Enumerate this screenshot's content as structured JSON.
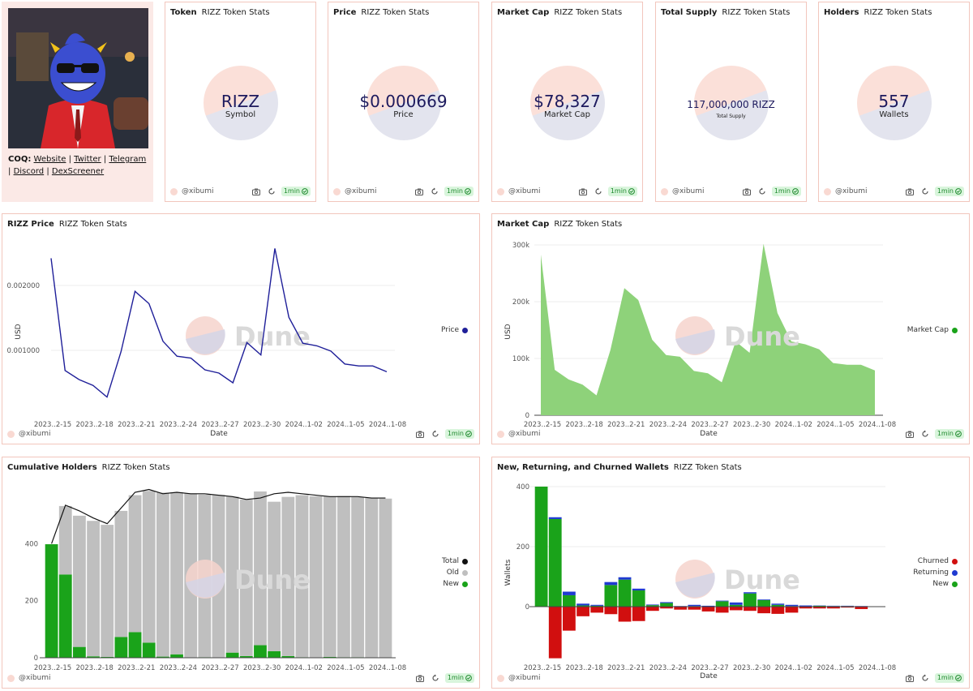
{
  "profile": {
    "prefix": "COQ:",
    "links": [
      "Website",
      "Twitter",
      "Telegram",
      "Discord",
      "DexScreener"
    ],
    "separator": "|"
  },
  "subtitle": "RIZZ Token Stats",
  "footer": {
    "author": "@xibumi",
    "refresh": "1min"
  },
  "counters": [
    {
      "title": "Token",
      "value": "RIZZ",
      "label": "Symbol"
    },
    {
      "title": "Price",
      "value": "$0.000669",
      "label": "Price"
    },
    {
      "title": "Market Cap",
      "value": "$78,327",
      "label": "Market Cap"
    },
    {
      "title": "Total Supply",
      "value": "117,000,000 RIZZ",
      "label": "Total Supply"
    },
    {
      "title": "Holders",
      "value": "557",
      "label": "Wallets"
    }
  ],
  "watermark": "Dune",
  "colors": {
    "card_border": "#f2c6bd",
    "price_line": "#1f1f99",
    "mcap_fill": "#8ed27a",
    "new": "#1aa31a",
    "old": "#bfbfbf",
    "total": "#111111",
    "churned": "#d10f0f",
    "returning": "#1f3ad1"
  },
  "chart_data": [
    {
      "id": "price",
      "type": "line",
      "title": "RIZZ Price",
      "xlabel": "Date",
      "ylabel": "USD",
      "x_ticks": [
        "2023..2-15",
        "2023..2-18",
        "2023..2-21",
        "2023..2-24",
        "2023..2-27",
        "2023..2-30",
        "2024..1-02",
        "2024..1-05",
        "2024..1-08"
      ],
      "y_ticks": [
        "0.001000",
        "0.002000"
      ],
      "ylim": [
        0,
        0.0026
      ],
      "series": [
        {
          "name": "Price",
          "values": [
            0.00242,
            0.00069,
            0.00055,
            0.00046,
            0.00028,
            0.00098,
            0.00191,
            0.00172,
            0.00114,
            0.00091,
            0.00088,
            0.0007,
            0.00065,
            0.0005,
            0.00112,
            0.00093,
            0.00257,
            0.00151,
            0.00111,
            0.00107,
            0.00099,
            0.00079,
            0.00076,
            0.00076,
            0.00067
          ]
        }
      ]
    },
    {
      "id": "marketcap",
      "type": "area",
      "title": "Market Cap",
      "xlabel": "Date",
      "ylabel": "USD",
      "x_ticks": [
        "2023..2-15",
        "2023..2-18",
        "2023..2-21",
        "2023..2-24",
        "2023..2-27",
        "2023..2-30",
        "2024..1-02",
        "2024..1-05",
        "2024..1-08"
      ],
      "y_ticks": [
        "0",
        "100k",
        "200k",
        "300k"
      ],
      "ylim": [
        0,
        300000
      ],
      "series": [
        {
          "name": "Market Cap",
          "values": [
            283000,
            80000,
            63000,
            54000,
            35000,
            115000,
            224000,
            203000,
            133000,
            106000,
            103000,
            78000,
            74000,
            58000,
            130000,
            110000,
            302000,
            180000,
            130000,
            125000,
            116000,
            92000,
            89000,
            89000,
            79000
          ]
        }
      ]
    },
    {
      "id": "holders",
      "type": "bar",
      "title": "Cumulative Holders",
      "x_ticks": [
        "2023..2-15",
        "2023..2-18",
        "2023..2-21",
        "2023..2-24",
        "2023..2-27",
        "2023..2-30",
        "2024..1-02",
        "2024..1-05",
        "2024..1-08"
      ],
      "y_ticks": [
        "0",
        "200",
        "400"
      ],
      "ylim": [
        0,
        600
      ],
      "series": [
        {
          "name": "Total",
          "values": [
            400,
            535,
            515,
            490,
            470,
            525,
            580,
            590,
            575,
            580,
            575,
            575,
            570,
            565,
            555,
            560,
            575,
            580,
            575,
            570,
            565,
            565,
            565,
            560,
            560
          ]
        },
        {
          "name": "Old",
          "values": [
            0,
            240,
            460,
            475,
            463,
            442,
            480,
            532,
            575,
            568,
            575,
            570,
            570,
            547,
            549,
            539,
            524,
            558,
            568,
            565,
            562,
            565,
            561,
            560,
            558
          ]
        },
        {
          "name": "New",
          "values": [
            398,
            292,
            38,
            5,
            3,
            73,
            90,
            53,
            4,
            12,
            1,
            2,
            1,
            18,
            6,
            44,
            23,
            6,
            2,
            1,
            3,
            2,
            2,
            1,
            0
          ]
        }
      ]
    },
    {
      "id": "wallets",
      "type": "bar",
      "title": "New, Returning, and Churned Wallets",
      "xlabel": "Date",
      "ylabel": "Wallets",
      "x_ticks": [
        "2023..2-15",
        "2023..2-18",
        "2023..2-21",
        "2023..2-24",
        "2023..2-27",
        "2023..2-30",
        "2024..1-02",
        "2024..1-05",
        "2024..1-08"
      ],
      "y_ticks": [
        "0",
        "200",
        "400"
      ],
      "ylim": [
        -200,
        400
      ],
      "series": [
        {
          "name": "Churned",
          "values": [
            0,
            -172,
            -80,
            -32,
            -20,
            -25,
            -50,
            -48,
            -14,
            -6,
            -10,
            -10,
            -16,
            -20,
            -12,
            -14,
            -22,
            -24,
            -20,
            -6,
            -6,
            -6,
            -3,
            -8,
            -1
          ]
        },
        {
          "name": "Returning",
          "values": [
            0,
            6,
            12,
            6,
            3,
            10,
            8,
            6,
            2,
            3,
            1,
            4,
            2,
            2,
            8,
            4,
            2,
            4,
            4,
            3,
            1,
            1,
            1,
            1,
            1
          ]
        },
        {
          "name": "New",
          "values": [
            400,
            292,
            38,
            4,
            3,
            72,
            90,
            54,
            5,
            12,
            1,
            2,
            1,
            18,
            6,
            44,
            22,
            6,
            2,
            1,
            3,
            2,
            2,
            1,
            0
          ]
        }
      ]
    }
  ]
}
